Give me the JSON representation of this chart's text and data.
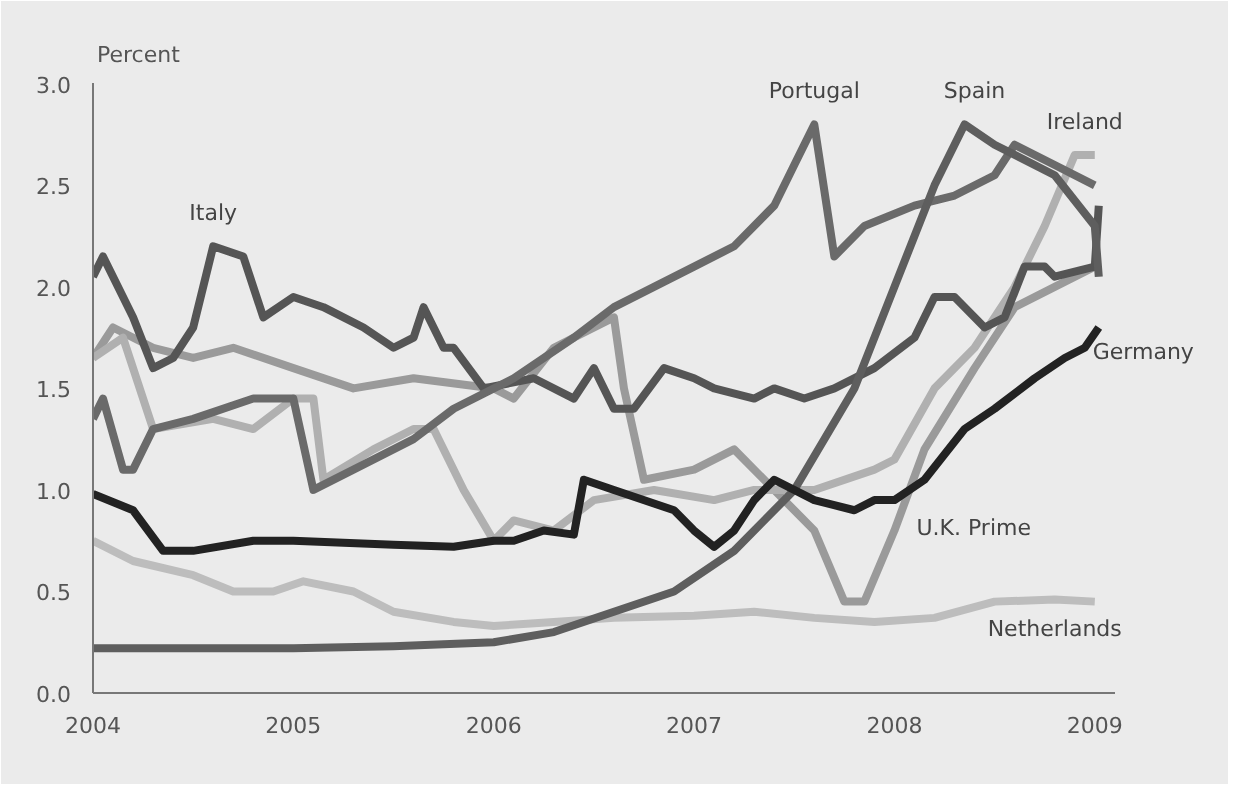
{
  "chart_data": {
    "type": "line",
    "ylabel": "Percent",
    "xlim": [
      2004,
      2009.1
    ],
    "ylim": [
      0,
      3
    ],
    "xticks": [
      2004,
      2005,
      2006,
      2007,
      2008,
      2009
    ],
    "yticks": [
      {
        "value": 0,
        "label": "0.0"
      },
      {
        "value": 0.5,
        "label": "0.5"
      },
      {
        "value": 1,
        "label": "1.0"
      },
      {
        "value": 1.5,
        "label": "1.5"
      },
      {
        "value": 2,
        "label": "2.0"
      },
      {
        "value": 2.5,
        "label": "2.5"
      },
      {
        "value": 3,
        "label": "3.0"
      }
    ],
    "grid": false,
    "marker": "none",
    "line_style": "solid",
    "series": [
      {
        "color": "#bdbdbd",
        "x": [
          2004,
          2004.2,
          2004.5,
          2004.7,
          2004.9,
          2005.05,
          2005.3,
          2005.5,
          2005.8,
          2006,
          2006.3,
          2006.6,
          2007,
          2007.3,
          2007.6,
          2007.9,
          2008.2,
          2008.5,
          2008.8,
          2009
        ],
        "values": [
          0.75,
          0.65,
          0.58,
          0.5,
          0.5,
          0.55,
          0.5,
          0.4,
          0.35,
          0.33,
          0.35,
          0.37,
          0.38,
          0.4,
          0.37,
          0.35,
          0.37,
          0.45,
          0.46,
          0.45
        ]
      },
      {
        "color": "#9a9a9a",
        "x": [
          2004,
          2004.1,
          2004.3,
          2004.5,
          2004.7,
          2005,
          2005.3,
          2005.6,
          2006,
          2006.1,
          2006.3,
          2006.6,
          2006.65,
          2006.75,
          2007,
          2007.2,
          2007.4,
          2007.6,
          2007.75,
          2007.85,
          2008,
          2008.15,
          2008.4,
          2008.6,
          2008.8,
          2009
        ],
        "values": [
          1.65,
          1.8,
          1.7,
          1.65,
          1.7,
          1.6,
          1.5,
          1.55,
          1.5,
          1.45,
          1.7,
          1.85,
          1.5,
          1.05,
          1.1,
          1.2,
          1.0,
          0.8,
          0.45,
          0.45,
          0.8,
          1.2,
          1.6,
          1.9,
          2.0,
          2.1
        ]
      },
      {
        "color": "#b0b0b0",
        "x": [
          2004,
          2004.15,
          2004.3,
          2004.6,
          2004.8,
          2005,
          2005.1,
          2005.15,
          2005.4,
          2005.6,
          2005.7,
          2005.85,
          2006,
          2006.1,
          2006.3,
          2006.5,
          2006.8,
          2007.1,
          2007.3,
          2007.6,
          2007.9,
          2008,
          2008.2,
          2008.4,
          2008.6,
          2008.75,
          2008.9,
          2009
        ],
        "values": [
          1.65,
          1.75,
          1.3,
          1.35,
          1.3,
          1.45,
          1.45,
          1.05,
          1.2,
          1.3,
          1.3,
          1.0,
          0.75,
          0.85,
          0.8,
          0.95,
          1.0,
          0.95,
          1.0,
          1.0,
          1.1,
          1.15,
          1.5,
          1.7,
          2.0,
          2.3,
          2.65,
          2.65
        ]
      },
      {
        "color": "#555555",
        "x": [
          2004,
          2004.05,
          2004.2,
          2004.3,
          2004.4,
          2004.5,
          2004.6,
          2004.75,
          2004.85,
          2005,
          2005.15,
          2005.35,
          2005.5,
          2005.6,
          2005.65,
          2005.75,
          2005.8,
          2005.95,
          2006.2,
          2006.4,
          2006.5,
          2006.6,
          2006.7,
          2006.85,
          2007,
          2007.1,
          2007.3,
          2007.4,
          2007.55,
          2007.7,
          2007.9,
          2008.1,
          2008.2,
          2008.3,
          2008.45,
          2008.55,
          2008.65,
          2008.75,
          2008.8,
          2009,
          2009.02
        ],
        "values": [
          2.05,
          2.15,
          1.85,
          1.6,
          1.65,
          1.8,
          2.2,
          2.15,
          1.85,
          1.95,
          1.9,
          1.8,
          1.7,
          1.75,
          1.9,
          1.7,
          1.7,
          1.5,
          1.55,
          1.45,
          1.6,
          1.4,
          1.4,
          1.6,
          1.55,
          1.5,
          1.45,
          1.5,
          1.45,
          1.5,
          1.6,
          1.75,
          1.95,
          1.95,
          1.8,
          1.85,
          2.1,
          2.1,
          2.05,
          2.1,
          2.4
        ]
      },
      {
        "color": "#6a6a6a",
        "x": [
          2004,
          2004.05,
          2004.15,
          2004.2,
          2004.3,
          2004.5,
          2004.8,
          2005,
          2005.1,
          2005.3,
          2005.6,
          2005.8,
          2006.1,
          2006.4,
          2006.6,
          2006.8,
          2007,
          2007.2,
          2007.4,
          2007.5,
          2007.6,
          2007.7,
          2007.85,
          2008.1,
          2008.3,
          2008.5,
          2008.6,
          2008.8,
          2009
        ],
        "values": [
          1.35,
          1.45,
          1.1,
          1.1,
          1.3,
          1.35,
          1.45,
          1.45,
          1.0,
          1.1,
          1.25,
          1.4,
          1.55,
          1.75,
          1.9,
          2.0,
          2.1,
          2.2,
          2.4,
          2.6,
          2.8,
          2.15,
          2.3,
          2.4,
          2.45,
          2.55,
          2.7,
          2.6,
          2.5
        ]
      },
      {
        "color": "#5e5e5e",
        "x": [
          2004,
          2004.5,
          2005,
          2005.5,
          2006,
          2006.3,
          2006.6,
          2006.9,
          2007.2,
          2007.5,
          2007.8,
          2008,
          2008.2,
          2008.35,
          2008.5,
          2008.8,
          2009,
          2009.02
        ],
        "values": [
          0.22,
          0.22,
          0.22,
          0.23,
          0.25,
          0.3,
          0.4,
          0.5,
          0.7,
          1.0,
          1.5,
          2.0,
          2.5,
          2.8,
          2.7,
          2.55,
          2.3,
          2.05
        ]
      },
      {
        "color": "#222222",
        "x": [
          2004,
          2004.2,
          2004.35,
          2004.5,
          2004.8,
          2005,
          2005.5,
          2005.8,
          2006,
          2006.1,
          2006.25,
          2006.4,
          2006.45,
          2006.6,
          2006.9,
          2007,
          2007.1,
          2007.2,
          2007.3,
          2007.4,
          2007.6,
          2007.8,
          2007.9,
          2008,
          2008.15,
          2008.35,
          2008.5,
          2008.7,
          2008.85,
          2008.95,
          2009.02
        ],
        "values": [
          0.98,
          0.9,
          0.7,
          0.7,
          0.75,
          0.75,
          0.73,
          0.72,
          0.75,
          0.75,
          0.8,
          0.78,
          1.05,
          1.0,
          0.9,
          0.8,
          0.72,
          0.8,
          0.95,
          1.05,
          0.95,
          0.9,
          0.95,
          0.95,
          1.05,
          1.3,
          1.4,
          1.55,
          1.65,
          1.7,
          1.8
        ]
      }
    ],
    "annotations": [
      {
        "text": "Italy",
        "x": 2004.6,
        "y": 2.2
      },
      {
        "text": "Portugal",
        "x": 2007.6,
        "y": 2.8
      },
      {
        "text": "Spain",
        "x": 2008.4,
        "y": 2.8
      },
      {
        "text": "Ireland",
        "x": 2008.95,
        "y": 2.65
      },
      {
        "text": "Germany",
        "x": 2008.95,
        "y": 1.7
      },
      {
        "text": "U.K. Prime",
        "x": 2008.05,
        "y": 0.85
      },
      {
        "text": "Netherlands",
        "x": 2008.8,
        "y": 0.46
      }
    ]
  }
}
